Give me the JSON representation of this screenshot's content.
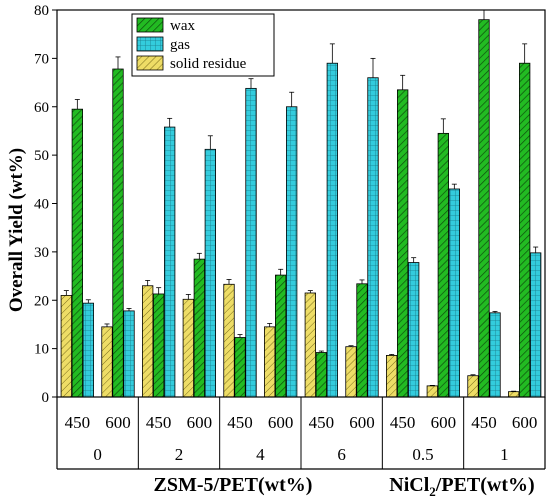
{
  "chart_data": {
    "type": "bar",
    "ylabel": "Overall Yield (wt%)",
    "ylim": [
      0,
      80
    ],
    "yticks": [
      0,
      10,
      20,
      30,
      40,
      50,
      60,
      70,
      80
    ],
    "legend_position": "top-left",
    "series": [
      {
        "name": "wax",
        "color": "#22bb22",
        "pattern": "diagonal-hatch",
        "values": [
          59.5,
          67.8,
          21.3,
          28.5,
          12.3,
          25.2,
          9.2,
          23.4,
          63.5,
          54.5,
          78.0,
          69.0
        ],
        "errors": [
          2.0,
          2.5,
          1.3,
          1.2,
          0.6,
          1.2,
          0.3,
          0.8,
          3.0,
          3.0,
          2.0,
          4.0
        ]
      },
      {
        "name": "gas",
        "color": "#33ccdd",
        "pattern": "grid",
        "values": [
          19.4,
          17.8,
          55.8,
          51.2,
          63.8,
          60.0,
          69.0,
          66.0,
          27.8,
          43.0,
          17.4,
          29.8
        ],
        "errors": [
          0.7,
          0.5,
          1.8,
          2.8,
          2.0,
          3.0,
          4.0,
          4.0,
          1.0,
          1.0,
          0.3,
          1.2
        ]
      },
      {
        "name": "solid residue",
        "color": "#eedd66",
        "pattern": "diagonal-lines",
        "values": [
          21.0,
          14.5,
          23.0,
          20.2,
          23.3,
          14.5,
          21.5,
          10.4,
          8.6,
          2.3,
          4.4,
          1.1
        ],
        "errors": [
          1.0,
          0.6,
          1.1,
          1.0,
          1.0,
          0.7,
          0.5,
          0.2,
          0.2,
          0.1,
          0.2,
          0.1
        ]
      }
    ],
    "categories": [
      "450",
      "600",
      "450",
      "600",
      "450",
      "600",
      "450",
      "600",
      "450",
      "600",
      "450",
      "600"
    ],
    "groups": [
      {
        "label": "0",
        "members": [
          0,
          1
        ]
      },
      {
        "label": "2",
        "members": [
          2,
          3
        ]
      },
      {
        "label": "4",
        "members": [
          4,
          5
        ]
      },
      {
        "label": "6",
        "members": [
          6,
          7
        ]
      },
      {
        "label": "0.5",
        "members": [
          8,
          9
        ]
      },
      {
        "label": "1",
        "members": [
          10,
          11
        ]
      }
    ],
    "xlabel_left": "ZSM-5/PET(wt%)",
    "xlabel_right_parts": [
      "NiCl",
      "2",
      "/PET(wt%)"
    ]
  }
}
